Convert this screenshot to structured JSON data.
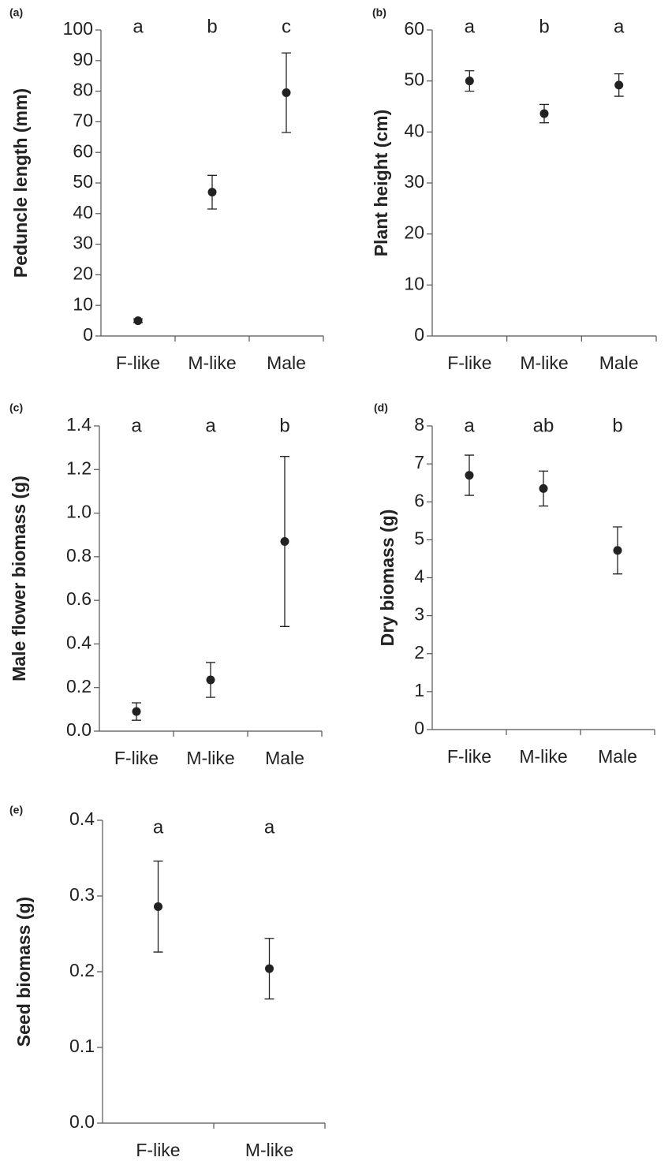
{
  "chart_data": [
    {
      "type": "errorbar",
      "panel_label": "(a)",
      "y_label": "Peduncle length (mm)",
      "categories": [
        "F-like",
        "M-like",
        "Male"
      ],
      "values": [
        5,
        47,
        79.5
      ],
      "errors": [
        0.6,
        5.5,
        13
      ],
      "annotations": [
        "a",
        "b",
        "c"
      ],
      "color": "#222222",
      "ylim": [
        0,
        100
      ],
      "yticks": [
        0,
        10,
        20,
        30,
        40,
        50,
        60,
        70,
        80,
        90,
        100
      ]
    },
    {
      "type": "errorbar",
      "panel_label": "(b)",
      "y_label": "Plant height (cm)",
      "categories": [
        "F-like",
        "M-like",
        "Male"
      ],
      "values": [
        50,
        43.6,
        49.2
      ],
      "errors": [
        2,
        1.8,
        2.2
      ],
      "annotations": [
        "a",
        "b",
        "a"
      ],
      "color": "#222222",
      "ylim": [
        0,
        60
      ],
      "yticks": [
        0,
        10,
        20,
        30,
        40,
        50,
        60
      ]
    },
    {
      "type": "errorbar",
      "panel_label": "(c)",
      "y_label": "Male flower biomass (g)",
      "categories": [
        "F-like",
        "M-like",
        "Male"
      ],
      "values": [
        0.09,
        0.235,
        0.87
      ],
      "errors": [
        0.04,
        0.08,
        0.39
      ],
      "annotations": [
        "a",
        "a",
        "b"
      ],
      "color": "#222222",
      "ylim": [
        0,
        1.4
      ],
      "yticks": [
        {
          "value": 0,
          "label": "0.0"
        },
        0.2,
        0.4,
        0.6,
        0.8,
        {
          "value": 1,
          "label": "1.0"
        },
        1.2,
        1.4
      ]
    },
    {
      "type": "errorbar",
      "panel_label": "(d)",
      "y_label": "Dry biomass (g)",
      "categories": [
        "F-like",
        "M-like",
        "Male"
      ],
      "values": [
        6.7,
        6.35,
        4.72
      ],
      "errors": [
        0.53,
        0.46,
        0.62
      ],
      "annotations": [
        "a",
        "ab",
        "b"
      ],
      "color": "#222222",
      "ylim": [
        0,
        8
      ],
      "yticks": [
        0,
        1,
        2,
        3,
        4,
        5,
        6,
        7,
        8
      ]
    },
    {
      "type": "errorbar",
      "panel_label": "(e)",
      "y_label": "Seed biomass (g)",
      "categories": [
        "F-like",
        "M-like"
      ],
      "values": [
        0.286,
        0.204
      ],
      "errors": [
        0.06,
        0.04
      ],
      "annotations": [
        "a",
        "a"
      ],
      "color": "#222222",
      "ylim": [
        0,
        0.4
      ],
      "yticks": [
        {
          "value": 0,
          "label": "0.0"
        },
        0.1,
        0.2,
        0.3,
        0.4
      ]
    }
  ]
}
